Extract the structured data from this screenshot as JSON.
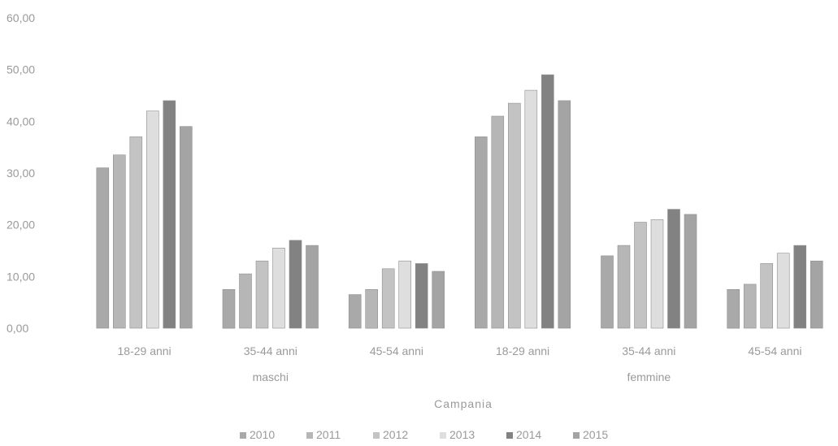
{
  "chart_data": {
    "type": "bar",
    "ylim": [
      0,
      60
    ],
    "yticks": [
      "0,00",
      "10,00",
      "20,00",
      "30,00",
      "40,00",
      "50,00",
      "60,00"
    ],
    "categories": [
      "18-29 anni",
      "35-44 anni",
      "45-54 anni",
      "18-29 anni",
      "35-44 anni",
      "45-54 anni"
    ],
    "groups": [
      {
        "label": "maschi",
        "span": [
          0,
          2
        ]
      },
      {
        "label": "femmine",
        "span": [
          3,
          5
        ]
      }
    ],
    "xlabel": "Campania",
    "series": [
      {
        "name": "2010",
        "color": "#a9a9a9",
        "values": [
          31.0,
          7.5,
          6.5,
          37.0,
          14.0,
          7.5
        ]
      },
      {
        "name": "2011",
        "color": "#b6b6b6",
        "values": [
          33.5,
          10.5,
          7.5,
          41.0,
          16.0,
          8.5
        ]
      },
      {
        "name": "2012",
        "color": "#c3c3c3",
        "values": [
          37.0,
          13.0,
          11.5,
          43.5,
          20.5,
          12.5
        ]
      },
      {
        "name": "2013",
        "color": "#dedede",
        "values": [
          42.0,
          15.5,
          13.0,
          46.0,
          21.0,
          14.5
        ]
      },
      {
        "name": "2014",
        "color": "#828282",
        "values": [
          44.0,
          17.0,
          12.5,
          49.0,
          23.0,
          16.0
        ]
      },
      {
        "name": "2015",
        "color": "#a4a4a4",
        "values": [
          39.0,
          16.0,
          11.0,
          44.0,
          22.0,
          13.0
        ]
      }
    ],
    "legend_position": "bottom",
    "grid": false
  }
}
